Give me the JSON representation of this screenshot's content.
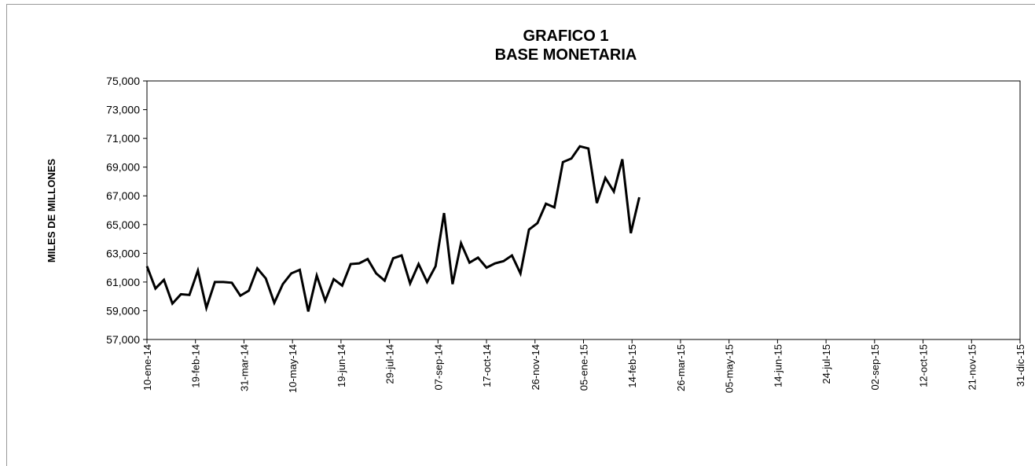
{
  "chart_data": {
    "type": "line",
    "title": "GRAFICO 1",
    "subtitle": "BASE MONETARIA",
    "y_label": "MILES DE MILLONES",
    "x": [
      "2014-01-10",
      "2014-01-17",
      "2014-01-24",
      "2014-01-31",
      "2014-02-07",
      "2014-02-14",
      "2014-02-21",
      "2014-02-28",
      "2014-03-07",
      "2014-03-14",
      "2014-03-21",
      "2014-03-28",
      "2014-04-04",
      "2014-04-11",
      "2014-04-18",
      "2014-04-25",
      "2014-05-02",
      "2014-05-09",
      "2014-05-16",
      "2014-05-23",
      "2014-05-30",
      "2014-06-06",
      "2014-06-13",
      "2014-06-20",
      "2014-06-27",
      "2014-07-04",
      "2014-07-11",
      "2014-07-18",
      "2014-07-25",
      "2014-08-01",
      "2014-08-08",
      "2014-08-15",
      "2014-08-22",
      "2014-08-29",
      "2014-09-05",
      "2014-09-12",
      "2014-09-19",
      "2014-09-26",
      "2014-10-03",
      "2014-10-10",
      "2014-10-17",
      "2014-10-24",
      "2014-10-31",
      "2014-11-07",
      "2014-11-14",
      "2014-11-21",
      "2014-11-28",
      "2014-12-05",
      "2014-12-12",
      "2014-12-19",
      "2014-12-26",
      "2015-01-02",
      "2015-01-09",
      "2015-01-16",
      "2015-01-23",
      "2015-01-30",
      "2015-02-06",
      "2015-02-13",
      "2015-02-20"
    ],
    "series": [
      {
        "name": "BASE MONETARIA",
        "color": "#000000",
        "values": [
          62100,
          60550,
          61150,
          59500,
          60150,
          60100,
          61800,
          59200,
          61000,
          61000,
          60950,
          60050,
          60400,
          61950,
          61250,
          59550,
          60850,
          61600,
          61850,
          58950,
          61450,
          59700,
          61200,
          60750,
          62250,
          62300,
          62600,
          61600,
          61100,
          62650,
          62850,
          60900,
          62250,
          61000,
          62100,
          65800,
          60850,
          63700,
          62350,
          62700,
          62000,
          62300,
          62450,
          62850,
          61600,
          64650,
          65100,
          66450,
          66200,
          69350,
          69600,
          70450,
          70300,
          66500,
          68250,
          67300,
          69550,
          64400,
          66900
        ]
      }
    ],
    "xlim": [
      "2014-01-10",
      "2015-12-31"
    ],
    "xticks": [
      {
        "value": "2014-01-10",
        "label": "10-ene-14"
      },
      {
        "value": "2014-02-19",
        "label": "19-feb-14"
      },
      {
        "value": "2014-03-31",
        "label": "31-mar-14"
      },
      {
        "value": "2014-05-10",
        "label": "10-may-14"
      },
      {
        "value": "2014-06-19",
        "label": "19-jun-14"
      },
      {
        "value": "2014-07-29",
        "label": "29-jul-14"
      },
      {
        "value": "2014-09-07",
        "label": "07-sep-14"
      },
      {
        "value": "2014-10-17",
        "label": "17-oct-14"
      },
      {
        "value": "2014-11-26",
        "label": "26-nov-14"
      },
      {
        "value": "2015-01-05",
        "label": "05-ene-15"
      },
      {
        "value": "2015-02-14",
        "label": "14-feb-15"
      },
      {
        "value": "2015-03-26",
        "label": "26-mar-15"
      },
      {
        "value": "2015-05-05",
        "label": "05-may-15"
      },
      {
        "value": "2015-06-14",
        "label": "14-jun-15"
      },
      {
        "value": "2015-07-24",
        "label": "24-jul-15"
      },
      {
        "value": "2015-09-02",
        "label": "02-sep-15"
      },
      {
        "value": "2015-10-12",
        "label": "12-oct-15"
      },
      {
        "value": "2015-11-21",
        "label": "21-nov-15"
      },
      {
        "value": "2015-12-31",
        "label": "31-dic-15"
      }
    ],
    "ylim": [
      57000,
      75000
    ],
    "yticks": [
      {
        "value": 57000,
        "label": "57,000"
      },
      {
        "value": 59000,
        "label": "59,000"
      },
      {
        "value": 61000,
        "label": "61,000"
      },
      {
        "value": 63000,
        "label": "63,000"
      },
      {
        "value": 65000,
        "label": "65,000"
      },
      {
        "value": 67000,
        "label": "67,000"
      },
      {
        "value": 69000,
        "label": "69,000"
      },
      {
        "value": 71000,
        "label": "71,000"
      },
      {
        "value": 73000,
        "label": "73,000"
      },
      {
        "value": 75000,
        "label": "75,000"
      }
    ],
    "grid": false
  }
}
